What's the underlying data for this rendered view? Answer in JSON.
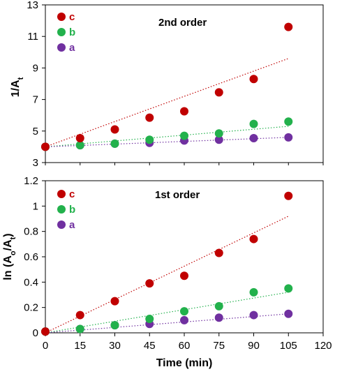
{
  "chart_data": [
    {
      "type": "scatter",
      "title": "2nd order",
      "xlabel": "",
      "ylabel": "1/A",
      "ylabel_sub": "t",
      "xlim": [
        0,
        120
      ],
      "ylim": [
        3,
        13
      ],
      "x_ticks": [],
      "y_ticks": [
        3,
        5,
        7,
        9,
        11,
        13
      ],
      "grid": false,
      "legend_position": "top-left",
      "x": [
        0,
        15,
        30,
        45,
        60,
        75,
        90,
        105
      ],
      "series": [
        {
          "name": "c",
          "color": "#c00000",
          "values": [
            4.0,
            4.55,
            5.1,
            5.85,
            6.25,
            7.45,
            8.3,
            11.6
          ],
          "trend": [
            4.0,
            9.6
          ]
        },
        {
          "name": "b",
          "color": "#22b14c",
          "values": [
            4.0,
            4.1,
            4.2,
            4.45,
            4.7,
            4.85,
            5.45,
            5.6
          ],
          "trend": [
            4.0,
            5.3
          ]
        },
        {
          "name": "a",
          "color": "#7030a0",
          "values": [
            4.0,
            4.1,
            4.2,
            4.25,
            4.4,
            4.45,
            4.55,
            4.6
          ],
          "trend": [
            4.0,
            4.6
          ]
        }
      ]
    },
    {
      "type": "scatter",
      "title": "1st order",
      "xlabel": "Time (min)",
      "ylabel": "ln (A",
      "ylabel_sub0": "o",
      "ylabel_mid": "/A",
      "ylabel_sub": "t",
      "ylabel_end": ")",
      "xlim": [
        0,
        120
      ],
      "ylim": [
        0,
        1.2
      ],
      "x_ticks": [
        0,
        15,
        30,
        45,
        60,
        75,
        90,
        105,
        120
      ],
      "y_ticks": [
        "0",
        "0.2",
        "0.4",
        "0.6",
        "0.8",
        "1",
        "1.2"
      ],
      "grid": false,
      "legend_position": "top-left",
      "x": [
        0,
        15,
        30,
        45,
        60,
        75,
        90,
        105
      ],
      "series": [
        {
          "name": "c",
          "color": "#c00000",
          "values": [
            0.01,
            0.14,
            0.25,
            0.39,
            0.45,
            0.63,
            0.74,
            1.08
          ],
          "trend": [
            0.0,
            0.92
          ]
        },
        {
          "name": "b",
          "color": "#22b14c",
          "values": [
            0.01,
            0.03,
            0.06,
            0.11,
            0.17,
            0.21,
            0.32,
            0.35
          ],
          "trend": [
            0.0,
            0.32
          ]
        },
        {
          "name": "a",
          "color": "#7030a0",
          "values": [
            0.01,
            0.03,
            0.06,
            0.07,
            0.1,
            0.12,
            0.14,
            0.15
          ],
          "trend": [
            0.0,
            0.15
          ]
        }
      ]
    }
  ]
}
